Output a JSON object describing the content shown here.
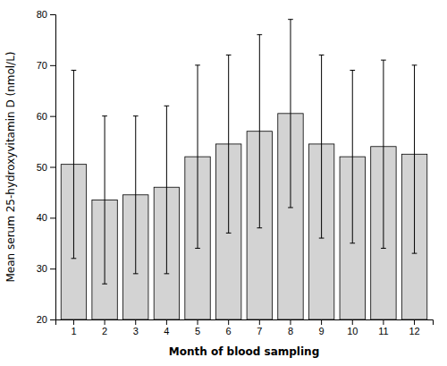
{
  "chart_data": {
    "type": "bar",
    "xlabel": "Month of blood sampling",
    "ylabel": "Mean serum 25-hydroxyvitamin D (nmol/L)",
    "categories": [
      "1",
      "2",
      "3",
      "4",
      "5",
      "6",
      "7",
      "8",
      "9",
      "10",
      "11",
      "12"
    ],
    "values": [
      50.5,
      43.5,
      44.5,
      46.0,
      52.0,
      54.5,
      57.0,
      60.5,
      54.5,
      52.0,
      54.0,
      52.5
    ],
    "lower_errors": [
      18.5,
      16.5,
      15.5,
      17.0,
      18.0,
      17.5,
      19.0,
      18.5,
      18.5,
      17.0,
      20.0,
      19.5
    ],
    "upper_errors": [
      18.5,
      16.5,
      15.5,
      16.0,
      18.0,
      17.5,
      19.0,
      18.5,
      17.5,
      17.0,
      17.0,
      17.5
    ],
    "color": "#d3d3d3",
    "ylim": [
      20,
      80
    ],
    "yticks": [
      20,
      30,
      40,
      50,
      60,
      70,
      80
    ],
    "grid": false
  }
}
